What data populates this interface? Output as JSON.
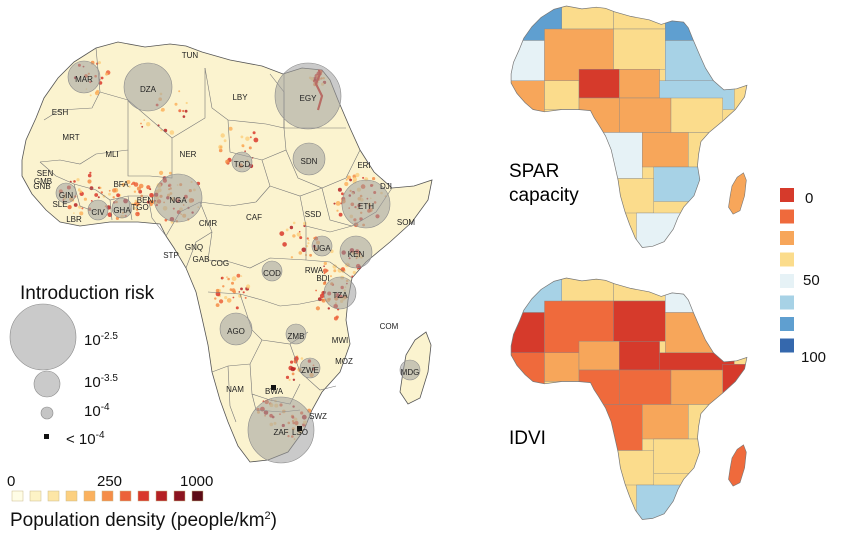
{
  "colors": {
    "land": "#fbf3cf",
    "border": "#6a6a6a",
    "bubble": "#9e9e9e",
    "density_hot": "#d7301f",
    "spar_scale": [
      "#d63a2b",
      "#ef6a3c",
      "#f7a65a",
      "#fbdc8c",
      "#e6f2f6",
      "#a7d2e6",
      "#5f9fd0",
      "#3568ad"
    ],
    "idvi_scale": [
      "#d63a2b",
      "#ef6a3c",
      "#f7a65a",
      "#fbdc8c",
      "#e6f2f6",
      "#a7d2e6",
      "#5f9fd0",
      "#3568ad"
    ],
    "density_scale": [
      "#fffde6",
      "#fdf3c6",
      "#fde6a6",
      "#fcd080",
      "#fbb15e",
      "#f58d48",
      "#ec6239",
      "#d9382b",
      "#b52124",
      "#8c1420",
      "#5c0b16"
    ]
  },
  "main_map": {
    "countries": [
      {
        "code": "TUN",
        "risk": "none"
      },
      {
        "code": "MAR",
        "risk": "10^-3.5"
      },
      {
        "code": "DZA",
        "risk": "10^-3"
      },
      {
        "code": "LBY",
        "risk": "none"
      },
      {
        "code": "EGY",
        "risk": "10^-2.5"
      },
      {
        "code": "ESH",
        "risk": "none"
      },
      {
        "code": "MRT",
        "risk": "none"
      },
      {
        "code": "MLI",
        "risk": "none"
      },
      {
        "code": "NER",
        "risk": "none"
      },
      {
        "code": "TCD",
        "risk": "10^-4"
      },
      {
        "code": "SDN",
        "risk": "10^-3.5"
      },
      {
        "code": "ERI",
        "risk": "none"
      },
      {
        "code": "DJI",
        "risk": "none"
      },
      {
        "code": "SEN",
        "risk": "none"
      },
      {
        "code": "GMB",
        "risk": "none"
      },
      {
        "code": "GNB",
        "risk": "none"
      },
      {
        "code": "GIN",
        "risk": "10^-4"
      },
      {
        "code": "SLE",
        "risk": "none"
      },
      {
        "code": "LBR",
        "risk": "none"
      },
      {
        "code": "CIV",
        "risk": "10^-4"
      },
      {
        "code": "GHA",
        "risk": "10^-4"
      },
      {
        "code": "BFA",
        "risk": "none"
      },
      {
        "code": "BEN",
        "risk": "none"
      },
      {
        "code": "TGO",
        "risk": "none"
      },
      {
        "code": "NGA",
        "risk": "10^-3"
      },
      {
        "code": "CMR",
        "risk": "none"
      },
      {
        "code": "CAF",
        "risk": "none"
      },
      {
        "code": "SSD",
        "risk": "none"
      },
      {
        "code": "ETH",
        "risk": "10^-3"
      },
      {
        "code": "SOM",
        "risk": "none"
      },
      {
        "code": "GNQ",
        "risk": "none"
      },
      {
        "code": "STP",
        "risk": "none"
      },
      {
        "code": "GAB",
        "risk": "none"
      },
      {
        "code": "COG",
        "risk": "none"
      },
      {
        "code": "COD",
        "risk": "10^-4"
      },
      {
        "code": "UGA",
        "risk": "10^-4"
      },
      {
        "code": "KEN",
        "risk": "10^-3.5"
      },
      {
        "code": "RWA",
        "risk": "none"
      },
      {
        "code": "BDI",
        "risk": "none"
      },
      {
        "code": "TZA",
        "risk": "10^-3.5"
      },
      {
        "code": "AGO",
        "risk": "10^-3.5"
      },
      {
        "code": "ZMB",
        "risk": "10^-4"
      },
      {
        "code": "MWI",
        "risk": "none"
      },
      {
        "code": "COM",
        "risk": "none"
      },
      {
        "code": "MOZ",
        "risk": "none"
      },
      {
        "code": "ZWE",
        "risk": "10^-4"
      },
      {
        "code": "MDG",
        "risk": "10^-4"
      },
      {
        "code": "NAM",
        "risk": "none"
      },
      {
        "code": "BWA",
        "risk": "<10^-4"
      },
      {
        "code": "SWZ",
        "risk": "none"
      },
      {
        "code": "ZAF",
        "risk": "10^-2.5"
      },
      {
        "code": "LSO",
        "risk": "<10^-4"
      }
    ]
  },
  "risk_legend": {
    "title": "Introduction risk",
    "items": [
      {
        "base": "10",
        "exp": "-2.5",
        "text": ""
      },
      {
        "base": "10",
        "exp": "-3.5",
        "text": ""
      },
      {
        "base": "10",
        "exp": "-4",
        "text": ""
      },
      {
        "base": "",
        "exp": "",
        "text": "< 10-4"
      }
    ]
  },
  "density_legend": {
    "ticks": [
      "0",
      "250",
      "1000"
    ],
    "title_main": "Population density (people/km",
    "title_sup": "2",
    "title_end": ")"
  },
  "spar_map": {
    "label_line1": "SPAR",
    "label_line2": "capacity"
  },
  "idvi_map": {
    "label": "IDVI"
  },
  "shared_scale": {
    "tick_labels": [
      "0",
      "50",
      "100"
    ]
  }
}
